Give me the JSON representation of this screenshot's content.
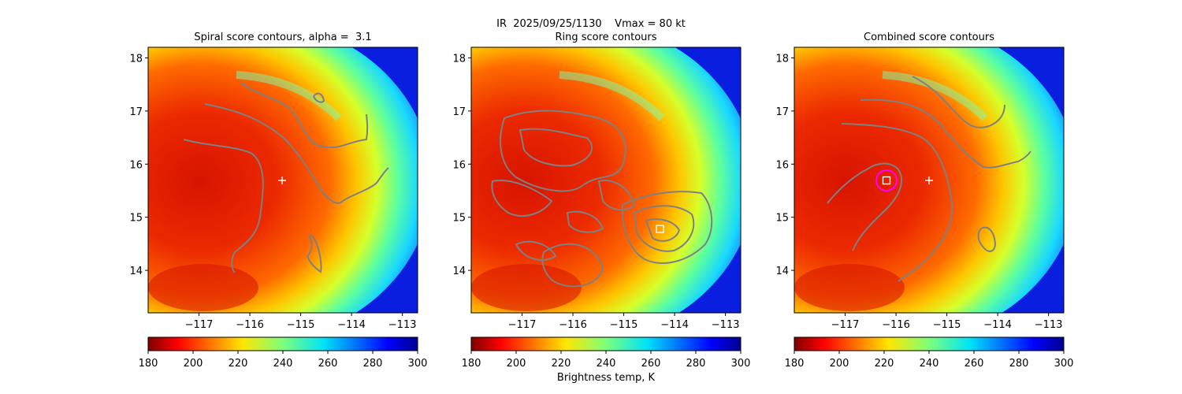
{
  "figure": {
    "suptitle_line1": "IR  2025/09/25/1130    Vmax = 80 kt",
    "colorbar_label": "Brightness temp, K"
  },
  "chart_data": [
    {
      "type": "heatmap",
      "title": "Spiral score contours, alpha =  3.1",
      "xlim": [
        -118.0,
        -112.7
      ],
      "ylim": [
        13.2,
        18.2
      ],
      "xticks": [
        -117,
        -116,
        -115,
        -114,
        -113
      ],
      "yticks": [
        14,
        15,
        16,
        17,
        18
      ],
      "markers": [
        {
          "kind": "plus",
          "x": -115.4,
          "y": 15.68,
          "color": "#ffffff"
        }
      ],
      "colorbar": {
        "min": 180,
        "max": 300,
        "ticks": [
          180,
          200,
          220,
          240,
          260,
          280,
          300
        ],
        "colormap": "jet_r"
      }
    },
    {
      "type": "heatmap",
      "title": "Ring score contours",
      "xlim": [
        -118.0,
        -112.7
      ],
      "ylim": [
        13.2,
        18.2
      ],
      "xticks": [
        -117,
        -116,
        -115,
        -114,
        -113
      ],
      "yticks": [
        14,
        15,
        16,
        17,
        18
      ],
      "markers": [
        {
          "kind": "square",
          "x": -114.4,
          "y": 14.74,
          "color": "#ffffff"
        }
      ],
      "colorbar": {
        "min": 180,
        "max": 300,
        "ticks": [
          180,
          200,
          220,
          240,
          260,
          280,
          300
        ],
        "colormap": "jet_r"
      }
    },
    {
      "type": "heatmap",
      "title": "Combined score contours",
      "xlim": [
        -118.0,
        -112.7
      ],
      "ylim": [
        13.2,
        18.2
      ],
      "xticks": [
        -117,
        -116,
        -115,
        -114,
        -113
      ],
      "yticks": [
        14,
        15,
        16,
        17,
        18
      ],
      "markers": [
        {
          "kind": "plus",
          "x": -115.4,
          "y": 15.68,
          "color": "#ffffff"
        },
        {
          "kind": "square",
          "x": -116.2,
          "y": 15.68,
          "color": "#ffffff"
        },
        {
          "kind": "circle",
          "x": -116.2,
          "y": 15.68,
          "color": "#ff00ff"
        }
      ],
      "colorbar": {
        "min": 180,
        "max": 300,
        "ticks": [
          180,
          200,
          220,
          240,
          260,
          280,
          300
        ],
        "colormap": "jet_r"
      }
    }
  ]
}
